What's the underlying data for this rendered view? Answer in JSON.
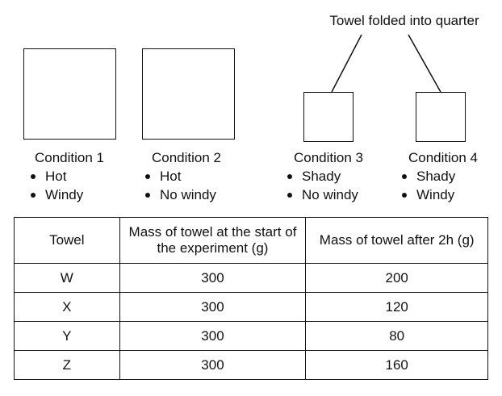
{
  "callout": {
    "label": "Towel folded into quarter"
  },
  "conditions": [
    {
      "title": "Condition 1",
      "points": [
        "Hot",
        "Windy"
      ]
    },
    {
      "title": "Condition 2",
      "points": [
        "Hot",
        "No windy"
      ]
    },
    {
      "title": "Condition 3",
      "points": [
        "Shady",
        "No windy"
      ]
    },
    {
      "title": "Condition 4",
      "points": [
        "Shady",
        "Windy"
      ]
    }
  ],
  "table": {
    "headers": [
      "Towel",
      "Mass of towel at the start of the experiment (g)",
      "Mass of towel after 2h (g)"
    ],
    "rows": [
      {
        "towel": "W",
        "start": "300",
        "after": "200"
      },
      {
        "towel": "X",
        "start": "300",
        "after": "120"
      },
      {
        "towel": "Y",
        "start": "300",
        "after": "80"
      },
      {
        "towel": "Z",
        "start": "300",
        "after": "160"
      }
    ]
  }
}
